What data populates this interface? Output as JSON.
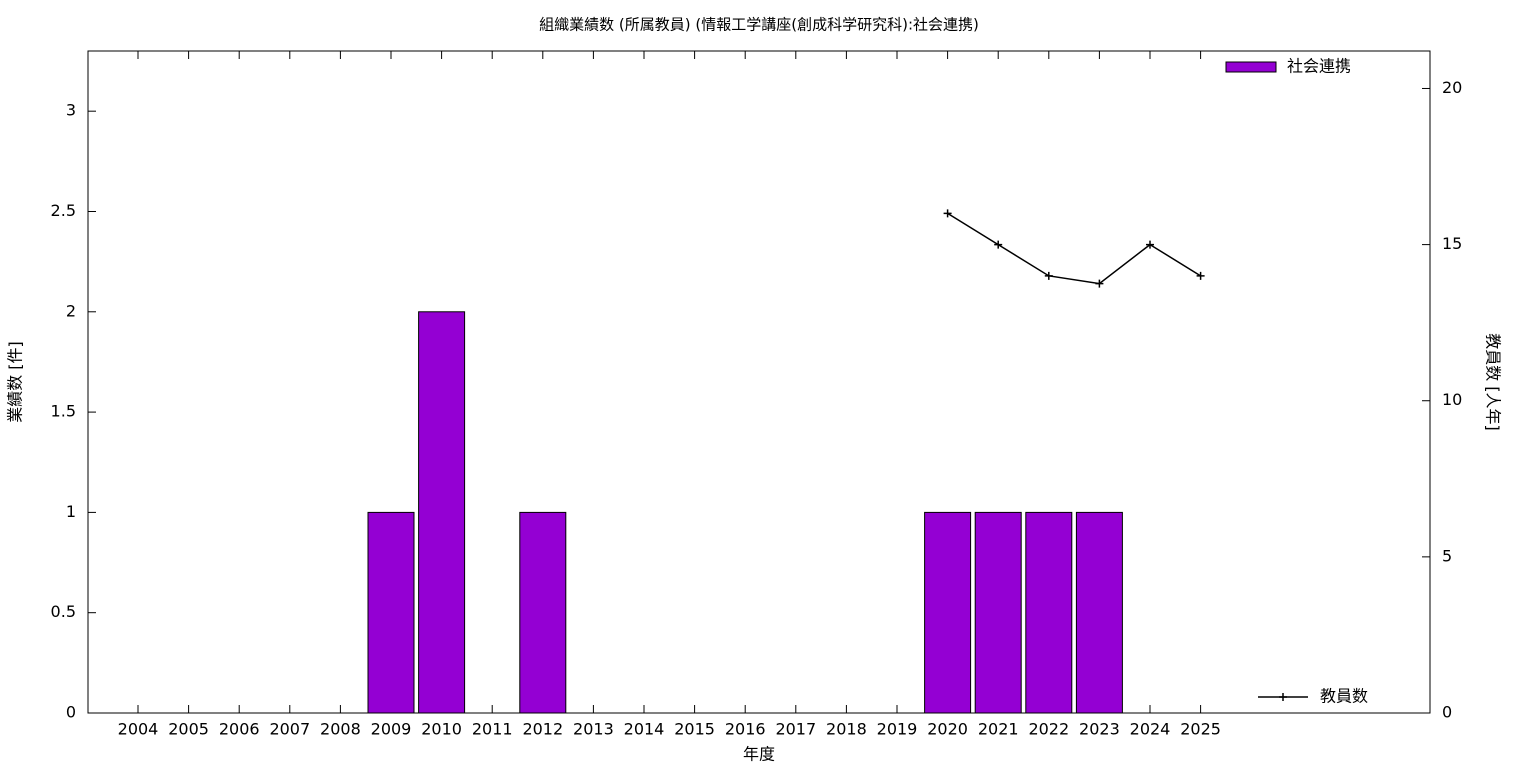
{
  "chart_data": {
    "type": "bar",
    "title": "組織業績数 (所属教員) (情報工学講座(創成科学研究科):社会連携)",
    "x_label": "年度",
    "y_label": "業績数 [件]",
    "y2_label": "教員数 [人年]",
    "categories": [
      "2004",
      "2005",
      "2006",
      "2007",
      "2008",
      "2009",
      "2010",
      "2011",
      "2012",
      "2013",
      "2014",
      "2015",
      "2016",
      "2017",
      "2018",
      "2019",
      "2020",
      "2021",
      "2022",
      "2023",
      "2024",
      "2025"
    ],
    "series": [
      {
        "name": "社会連携",
        "type": "bar",
        "color": "#9400d3",
        "legend": "top-right",
        "values": [
          0,
          0,
          0,
          0,
          0,
          1,
          2,
          0,
          1,
          0,
          0,
          0,
          0,
          0,
          0,
          0,
          1,
          1,
          1,
          1,
          0,
          0
        ]
      },
      {
        "name": "教員数",
        "type": "line",
        "axis": "y2",
        "color": "#000000",
        "legend": "bottom-right",
        "values": [
          null,
          null,
          null,
          null,
          null,
          null,
          null,
          null,
          null,
          null,
          null,
          null,
          null,
          null,
          null,
          null,
          16,
          15,
          14,
          13.75,
          15,
          14
        ]
      }
    ],
    "ylim": [
      0,
      3.3
    ],
    "yticks": [
      0,
      0.5,
      1,
      1.5,
      2,
      2.5,
      3
    ],
    "y2lim": [
      0,
      21.2
    ],
    "y2ticks": [
      0,
      5,
      10,
      15,
      20
    ]
  }
}
